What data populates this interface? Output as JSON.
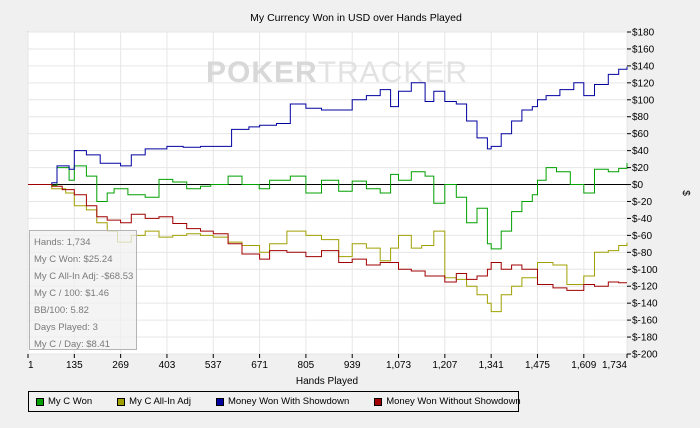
{
  "watermark": {
    "poker": "POKER",
    "tracker": "TRACKER"
  },
  "chart_data": {
    "type": "line",
    "title": "My Currency Won in USD over Hands Played",
    "xlabel": "Hands Played",
    "ylabel": "$",
    "xlim": [
      1,
      1734
    ],
    "ylim": [
      -200,
      180
    ],
    "x_ticks": [
      "1",
      "135",
      "269",
      "403",
      "537",
      "671",
      "805",
      "939",
      "1,073",
      "1,207",
      "1,341",
      "1,475",
      "1,609",
      "1,734"
    ],
    "y_ticks": [
      "$180",
      "$160",
      "$140",
      "$120",
      "$100",
      "$80",
      "$60",
      "$40",
      "$20",
      "$0",
      "$-20",
      "$-40",
      "$-60",
      "$-80",
      "$-100",
      "$-120",
      "$-140",
      "$-160",
      "$-180",
      "$-200"
    ],
    "grid": true,
    "legend_position": "bottom",
    "series": [
      {
        "name": "My C Won",
        "color": "#00a000",
        "points": [
          [
            1,
            0
          ],
          [
            70,
            -1
          ],
          [
            85,
            20
          ],
          [
            120,
            5
          ],
          [
            135,
            22
          ],
          [
            170,
            10
          ],
          [
            200,
            -20
          ],
          [
            230,
            -10
          ],
          [
            250,
            -5
          ],
          [
            290,
            -12
          ],
          [
            340,
            -15
          ],
          [
            380,
            6
          ],
          [
            420,
            3
          ],
          [
            460,
            -5
          ],
          [
            500,
            -2
          ],
          [
            530,
            0
          ],
          [
            580,
            10
          ],
          [
            620,
            0
          ],
          [
            670,
            -5
          ],
          [
            700,
            5
          ],
          [
            760,
            10
          ],
          [
            805,
            -10
          ],
          [
            850,
            5
          ],
          [
            900,
            -8
          ],
          [
            939,
            4
          ],
          [
            980,
            -5
          ],
          [
            1020,
            -10
          ],
          [
            1050,
            12
          ],
          [
            1073,
            5
          ],
          [
            1110,
            15
          ],
          [
            1150,
            10
          ],
          [
            1175,
            -22
          ],
          [
            1207,
            0
          ],
          [
            1240,
            -15
          ],
          [
            1270,
            -45
          ],
          [
            1300,
            -28
          ],
          [
            1330,
            -70
          ],
          [
            1341,
            -76
          ],
          [
            1370,
            -55
          ],
          [
            1400,
            -32
          ],
          [
            1430,
            -20
          ],
          [
            1460,
            -12
          ],
          [
            1475,
            5
          ],
          [
            1500,
            20
          ],
          [
            1530,
            15
          ],
          [
            1570,
            0
          ],
          [
            1609,
            -10
          ],
          [
            1640,
            18
          ],
          [
            1680,
            15
          ],
          [
            1710,
            19
          ],
          [
            1734,
            25.24
          ]
        ]
      },
      {
        "name": "My C All-In Adj",
        "color": "#a0a000",
        "points": [
          [
            1,
            0
          ],
          [
            70,
            -5
          ],
          [
            110,
            -10
          ],
          [
            135,
            -25
          ],
          [
            170,
            -30
          ],
          [
            200,
            -45
          ],
          [
            230,
            -55
          ],
          [
            260,
            -68
          ],
          [
            300,
            -60
          ],
          [
            340,
            -55
          ],
          [
            380,
            -62
          ],
          [
            420,
            -60
          ],
          [
            460,
            -58
          ],
          [
            500,
            -60
          ],
          [
            537,
            -62
          ],
          [
            580,
            -68
          ],
          [
            620,
            -72
          ],
          [
            671,
            -80
          ],
          [
            700,
            -70
          ],
          [
            750,
            -55
          ],
          [
            805,
            -60
          ],
          [
            850,
            -65
          ],
          [
            900,
            -85
          ],
          [
            939,
            -70
          ],
          [
            980,
            -75
          ],
          [
            1020,
            -90
          ],
          [
            1050,
            -75
          ],
          [
            1073,
            -60
          ],
          [
            1110,
            -75
          ],
          [
            1140,
            -72
          ],
          [
            1175,
            -55
          ],
          [
            1207,
            -110
          ],
          [
            1240,
            -112
          ],
          [
            1270,
            -120
          ],
          [
            1300,
            -130
          ],
          [
            1330,
            -140
          ],
          [
            1341,
            -150
          ],
          [
            1370,
            -130
          ],
          [
            1400,
            -120
          ],
          [
            1430,
            -110
          ],
          [
            1475,
            -92
          ],
          [
            1520,
            -95
          ],
          [
            1560,
            -118
          ],
          [
            1609,
            -108
          ],
          [
            1640,
            -80
          ],
          [
            1680,
            -78
          ],
          [
            1710,
            -72
          ],
          [
            1734,
            -68.53
          ]
        ]
      },
      {
        "name": "Money Won With Showdown",
        "color": "#0000a0",
        "points": [
          [
            1,
            0
          ],
          [
            70,
            2
          ],
          [
            85,
            22
          ],
          [
            120,
            18
          ],
          [
            135,
            40
          ],
          [
            170,
            35
          ],
          [
            210,
            25
          ],
          [
            269,
            22
          ],
          [
            300,
            35
          ],
          [
            340,
            42
          ],
          [
            403,
            45
          ],
          [
            450,
            44
          ],
          [
            500,
            45
          ],
          [
            537,
            45
          ],
          [
            570,
            45
          ],
          [
            590,
            65
          ],
          [
            640,
            68
          ],
          [
            671,
            70
          ],
          [
            720,
            72
          ],
          [
            760,
            95
          ],
          [
            805,
            90
          ],
          [
            850,
            88
          ],
          [
            900,
            88
          ],
          [
            939,
            100
          ],
          [
            980,
            105
          ],
          [
            1020,
            112
          ],
          [
            1050,
            92
          ],
          [
            1073,
            110
          ],
          [
            1110,
            120
          ],
          [
            1150,
            98
          ],
          [
            1175,
            110
          ],
          [
            1207,
            98
          ],
          [
            1240,
            95
          ],
          [
            1270,
            75
          ],
          [
            1300,
            55
          ],
          [
            1330,
            42
          ],
          [
            1341,
            45
          ],
          [
            1370,
            60
          ],
          [
            1400,
            75
          ],
          [
            1430,
            88
          ],
          [
            1460,
            92
          ],
          [
            1475,
            100
          ],
          [
            1500,
            105
          ],
          [
            1540,
            112
          ],
          [
            1580,
            120
          ],
          [
            1609,
            105
          ],
          [
            1640,
            118
          ],
          [
            1680,
            130
          ],
          [
            1710,
            136
          ],
          [
            1734,
            139
          ]
        ]
      },
      {
        "name": "Money Won Without Showdown",
        "color": "#a00000",
        "points": [
          [
            1,
            0
          ],
          [
            70,
            -2
          ],
          [
            100,
            -6
          ],
          [
            135,
            -12
          ],
          [
            170,
            -25
          ],
          [
            200,
            -38
          ],
          [
            230,
            -42
          ],
          [
            269,
            -45
          ],
          [
            300,
            -35
          ],
          [
            340,
            -40
          ],
          [
            380,
            -38
          ],
          [
            420,
            -46
          ],
          [
            460,
            -52
          ],
          [
            500,
            -55
          ],
          [
            537,
            -58
          ],
          [
            580,
            -70
          ],
          [
            620,
            -82
          ],
          [
            671,
            -88
          ],
          [
            700,
            -78
          ],
          [
            750,
            -80
          ],
          [
            805,
            -85
          ],
          [
            850,
            -78
          ],
          [
            900,
            -92
          ],
          [
            939,
            -88
          ],
          [
            980,
            -95
          ],
          [
            1020,
            -92
          ],
          [
            1073,
            -100
          ],
          [
            1110,
            -102
          ],
          [
            1150,
            -108
          ],
          [
            1207,
            -115
          ],
          [
            1240,
            -105
          ],
          [
            1270,
            -112
          ],
          [
            1300,
            -108
          ],
          [
            1330,
            -100
          ],
          [
            1341,
            -92
          ],
          [
            1370,
            -100
          ],
          [
            1400,
            -95
          ],
          [
            1430,
            -100
          ],
          [
            1475,
            -118
          ],
          [
            1520,
            -122
          ],
          [
            1560,
            -125
          ],
          [
            1609,
            -118
          ],
          [
            1640,
            -120
          ],
          [
            1680,
            -115
          ],
          [
            1710,
            -116
          ],
          [
            1734,
            -116
          ]
        ]
      }
    ]
  },
  "stats": {
    "hands": "Hands: 1,734",
    "won": "My C Won: $25.24",
    "allin": "My C All-In Adj: -$68.53",
    "per100": "My C / 100: $1.46",
    "bb100": "BB/100: 5.82",
    "days": "Days Played: 3",
    "perday": "My C / Day: $8.41"
  }
}
